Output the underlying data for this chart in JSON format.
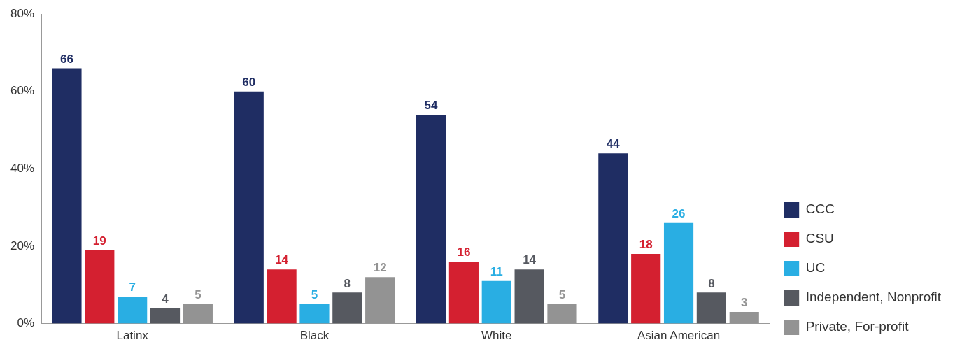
{
  "chart_data": {
    "type": "bar",
    "categories": [
      "Latinx",
      "Black",
      "White",
      "Asian American"
    ],
    "series": [
      {
        "name": "CCC",
        "color": "#1f2d63",
        "values": [
          66,
          60,
          54,
          44
        ]
      },
      {
        "name": "CSU",
        "color": "#d42030",
        "values": [
          19,
          14,
          16,
          18
        ]
      },
      {
        "name": "UC",
        "color": "#29aee3",
        "values": [
          7,
          5,
          11,
          26
        ]
      },
      {
        "name": "Independent, Nonprofit",
        "color": "#565960",
        "values": [
          4,
          8,
          14,
          8
        ]
      },
      {
        "name": "Private, For-profit",
        "color": "#939393",
        "values": [
          5,
          12,
          5,
          3
        ]
      }
    ],
    "ylim": [
      0,
      80
    ],
    "yticks": [
      {
        "value": 0,
        "label": "0%"
      },
      {
        "value": 20,
        "label": "20%"
      },
      {
        "value": 40,
        "label": "40%"
      },
      {
        "value": 60,
        "label": "60%"
      },
      {
        "value": 80,
        "label": "80%"
      }
    ],
    "grid": false,
    "legend": "right",
    "data_labels": true
  }
}
